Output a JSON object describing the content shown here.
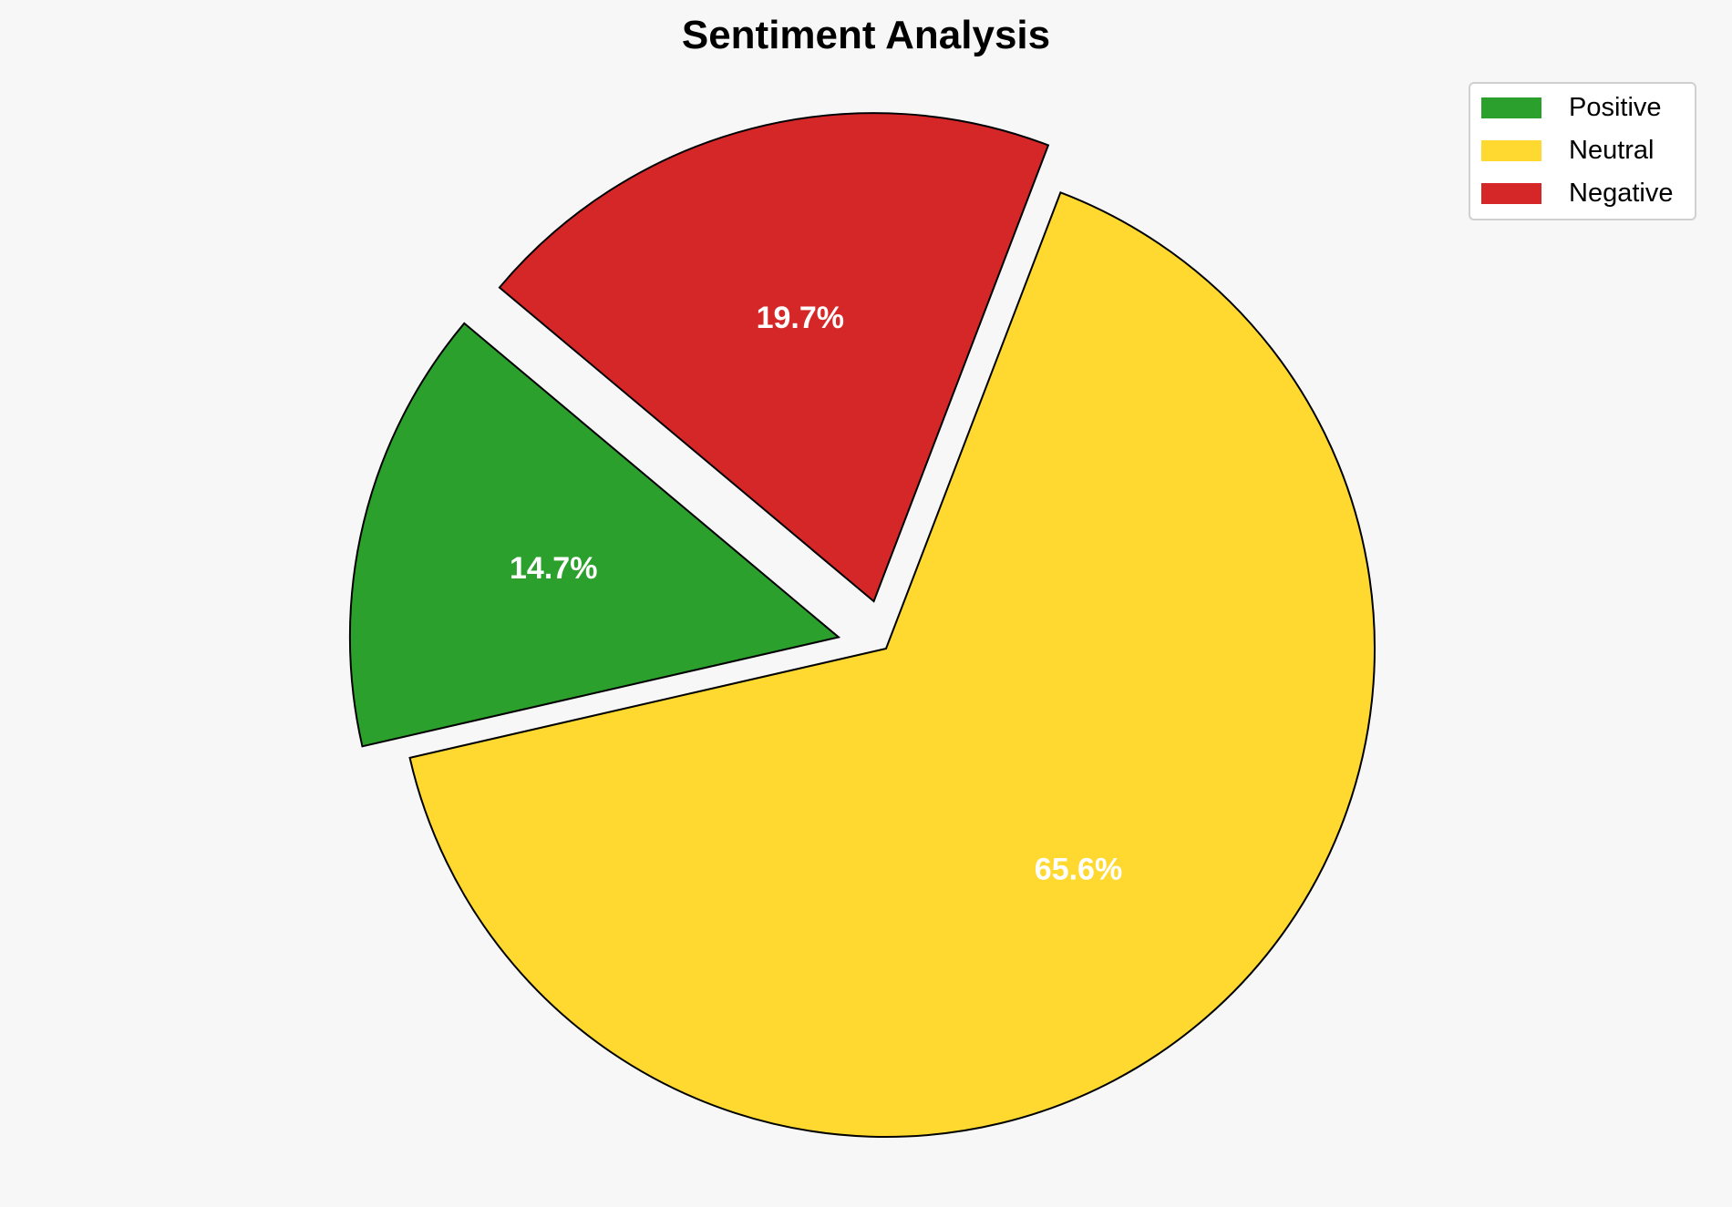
{
  "chart_data": {
    "type": "pie",
    "title": "Sentiment Analysis",
    "labels": [
      "Positive",
      "Neutral",
      "Negative"
    ],
    "values": [
      14.7,
      65.6,
      19.7
    ],
    "value_labels": [
      "14.7%",
      "65.6%",
      "19.7%"
    ],
    "colors": [
      "#2ca02c",
      "#ffd92f",
      "#d62728"
    ],
    "explode": [
      0.1,
      0,
      0.1
    ],
    "start_angle": 140,
    "direction": "counterclockwise",
    "edge_color": "#000000",
    "label_color": "#ffffff",
    "legend_placement": "top-right"
  }
}
